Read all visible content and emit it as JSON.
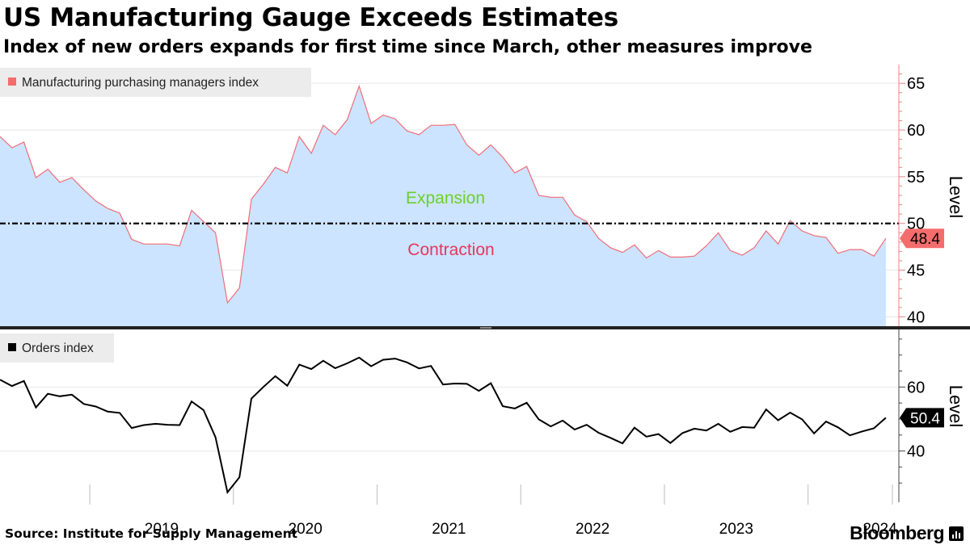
{
  "header": {
    "title": "US Manufacturing Gauge Exceeds Estimates",
    "subtitle": "Index of new orders expands for first time since March, other measures improve"
  },
  "footer": {
    "source": "Source: Institute for Supply Management",
    "brand": "Bloomberg"
  },
  "colors": {
    "pmi_fill": "#cce4ff",
    "pmi_line": "#f26d78",
    "pmi_legend": "#f56c6c",
    "orders_line": "#000000",
    "expansion_text": "#6fcf2a",
    "contraction_text": "#e8365d",
    "grid": "#e6e6e6",
    "axis": "#f08080"
  },
  "chart_data": [
    {
      "type": "area",
      "legend": "Manufacturing purchasing managers index",
      "legend_position": "top-left",
      "ylabel": "Level",
      "ylim": [
        39,
        67
      ],
      "yticks": [
        40,
        45,
        50,
        55,
        60,
        65
      ],
      "reference_line": 50,
      "annotations": {
        "above": "Expansion",
        "below": "Contraction"
      },
      "last_value_label": "48.4",
      "x_start": "2018-05",
      "x_frequency": "monthly",
      "x_tick_labels": [
        "2019",
        "2020",
        "2021",
        "2022",
        "2023",
        "2024"
      ],
      "values": [
        59.3,
        58.1,
        58.7,
        54.9,
        55.8,
        54.4,
        54.9,
        53.6,
        52.4,
        51.6,
        51.1,
        48.3,
        47.8,
        47.8,
        47.8,
        47.6,
        51.4,
        50.2,
        49.0,
        41.5,
        43.1,
        52.6,
        54.2,
        56.0,
        55.4,
        59.3,
        57.5,
        60.5,
        59.5,
        61.1,
        64.7,
        60.7,
        61.6,
        61.2,
        59.9,
        59.5,
        60.5,
        60.5,
        60.6,
        58.4,
        57.3,
        58.4,
        57.1,
        55.4,
        56.1,
        53.0,
        52.8,
        52.8,
        50.9,
        50.2,
        48.4,
        47.4,
        46.9,
        47.7,
        46.3,
        47.1,
        46.4,
        46.4,
        46.5,
        47.6,
        49.0,
        47.1,
        46.6,
        47.4,
        49.2,
        47.8,
        50.3,
        49.2,
        48.7,
        48.5,
        46.8,
        47.2,
        47.2,
        46.5,
        48.4
      ]
    },
    {
      "type": "line",
      "legend": "Orders index",
      "legend_position": "top-left",
      "ylabel": "Level",
      "ylim": [
        24,
        78
      ],
      "yticks": [
        40,
        60
      ],
      "last_value_label": "50.4",
      "x_start": "2018-05",
      "x_frequency": "monthly",
      "x_tick_labels": [
        "2019",
        "2020",
        "2021",
        "2022",
        "2023",
        "2024"
      ],
      "values": [
        62.3,
        60.3,
        61.9,
        53.6,
        57.9,
        57.1,
        57.6,
        54.7,
        53.9,
        52.3,
        51.9,
        47.2,
        48.1,
        48.5,
        48.2,
        48.1,
        55.5,
        52.8,
        44.3,
        27.1,
        31.8,
        56.4,
        60.0,
        63.4,
        60.4,
        67.0,
        65.6,
        68.2,
        65.9,
        67.4,
        69.2,
        66.5,
        68.5,
        68.9,
        67.7,
        65.8,
        66.6,
        60.8,
        61.1,
        61.0,
        58.8,
        61.2,
        54.0,
        53.3,
        55.1,
        49.9,
        47.7,
        49.5,
        46.7,
        48.2,
        45.7,
        44.1,
        42.4,
        47.3,
        44.5,
        45.3,
        42.5,
        45.6,
        47.0,
        46.4,
        48.5,
        46.0,
        47.5,
        47.3,
        53.0,
        49.6,
        52.0,
        49.9,
        45.5,
        49.2,
        47.4,
        44.9,
        46.1,
        47.1,
        50.4
      ]
    }
  ]
}
